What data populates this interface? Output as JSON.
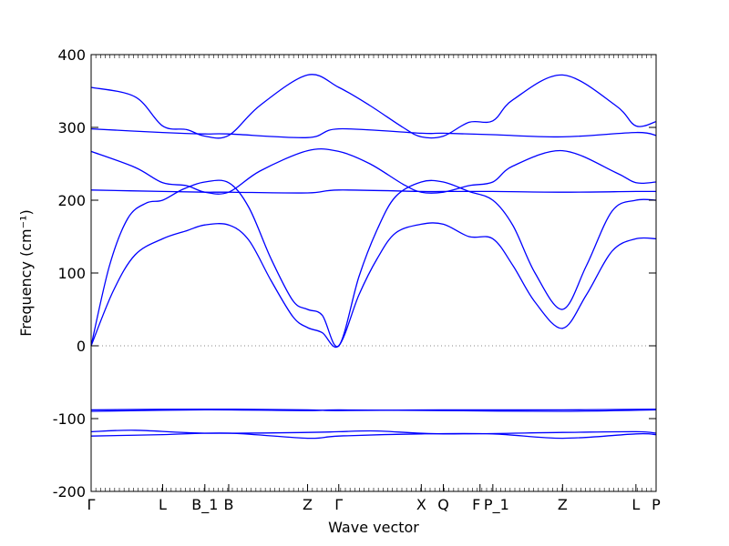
{
  "chart_data": {
    "type": "line",
    "title": "",
    "xlabel": "Wave vector",
    "ylabel": "Frequency (cm⁻¹)",
    "ylim": [
      -200,
      400
    ],
    "yticks": [
      -200,
      -100,
      0,
      100,
      200,
      300,
      400
    ],
    "grid": false,
    "legend": "none",
    "line_color": "#0000ff",
    "zero_line_color": "#888888",
    "xlim": [
      0,
      15.4
    ],
    "kpoints": [
      {
        "label": "Γ",
        "x": 0
      },
      {
        "label": "L",
        "x": 1.95
      },
      {
        "label": "B_1",
        "x": 3.1
      },
      {
        "label": "B",
        "x": 3.75
      },
      {
        "label": "Z",
        "x": 5.9
      },
      {
        "label": "Γ",
        "x": 6.75
      },
      {
        "label": "X",
        "x": 9.0
      },
      {
        "label": "Q",
        "x": 9.6
      },
      {
        "label": "F",
        "x": 10.6
      },
      {
        "label": "P_1",
        "x": 10.95
      },
      {
        "label": "Z",
        "x": 12.85
      },
      {
        "label": "L",
        "x": 14.85
      },
      {
        "label": "P",
        "x": 15.4
      }
    ],
    "series": [
      {
        "x": [
          0,
          1.2,
          1.95,
          2.6,
          3.1,
          3.75,
          4.6,
          5.9,
          6.75,
          7.6,
          8.5,
          9.0,
          9.6,
          10.3,
          10.95,
          11.5,
          12.85,
          14.3,
          14.85,
          15.4
        ],
        "values": [
          355,
          342,
          302,
          297,
          288,
          289,
          330,
          372,
          355,
          330,
          300,
          287,
          288,
          307,
          309,
          338,
          372,
          330,
          302,
          308
        ]
      },
      {
        "x": [
          0,
          1.95,
          3.1,
          3.75,
          5.9,
          6.75,
          9.0,
          9.6,
          10.95,
          12.85,
          14.85,
          15.4
        ],
        "values": [
          298,
          293,
          291,
          291,
          286,
          298,
          292,
          292,
          290,
          287,
          293,
          289
        ]
      },
      {
        "x": [
          0,
          1.2,
          1.95,
          2.6,
          3.1,
          3.75,
          4.6,
          5.9,
          6.75,
          7.6,
          8.5,
          9.0,
          9.6,
          10.3,
          10.95,
          11.5,
          12.85,
          14.3,
          14.85,
          15.4
        ],
        "values": [
          267,
          245,
          224,
          220,
          211,
          211,
          240,
          268,
          267,
          250,
          222,
          211,
          211,
          220,
          225,
          247,
          268,
          238,
          224,
          225
        ]
      },
      {
        "x": [
          0,
          1.95,
          3.1,
          3.75,
          5.9,
          6.75,
          9.0,
          9.6,
          10.95,
          12.85,
          14.85,
          15.4
        ],
        "values": [
          214,
          212,
          211,
          211,
          210,
          214,
          212,
          212,
          212,
          211,
          212,
          212
        ]
      },
      {
        "x": [
          0,
          0.5,
          1.0,
          1.5,
          1.95,
          2.5,
          3.1,
          3.75,
          4.3,
          4.9,
          5.5,
          5.9,
          6.3,
          6.75,
          7.3,
          7.8,
          8.3,
          9.0,
          9.6,
          10.3,
          10.95,
          11.5,
          12.1,
          12.85,
          13.5,
          14.2,
          14.85,
          15.4
        ],
        "values": [
          0,
          110,
          175,
          196,
          200,
          215,
          225,
          224,
          190,
          120,
          62,
          50,
          42,
          0,
          95,
          160,
          205,
          225,
          225,
          212,
          200,
          165,
          100,
          50,
          110,
          185,
          200,
          200
        ]
      },
      {
        "x": [
          0,
          0.6,
          1.2,
          1.95,
          2.6,
          3.1,
          3.75,
          4.3,
          4.9,
          5.5,
          5.9,
          6.3,
          6.75,
          7.3,
          7.8,
          8.3,
          9.0,
          9.6,
          10.3,
          10.95,
          11.5,
          12.1,
          12.85,
          13.5,
          14.2,
          14.85,
          15.4
        ],
        "values": [
          0,
          75,
          125,
          147,
          158,
          166,
          166,
          145,
          90,
          40,
          25,
          18,
          0,
          70,
          120,
          155,
          167,
          167,
          150,
          147,
          110,
          60,
          24,
          70,
          130,
          147,
          147
        ]
      },
      {
        "x": [
          0,
          3.1,
          5.9,
          6.75,
          9.6,
          12.85,
          15.4
        ],
        "values": [
          -88,
          -87,
          -88,
          -89,
          -88,
          -88,
          -87
        ]
      },
      {
        "x": [
          0,
          3.1,
          5.9,
          6.75,
          9.6,
          12.85,
          15.4
        ],
        "values": [
          -90,
          -88,
          -89,
          -88,
          -89,
          -90,
          -88
        ]
      },
      {
        "x": [
          0,
          1.2,
          3.1,
          5.9,
          6.75,
          7.8,
          9.6,
          12.85,
          14.85,
          15.4
        ],
        "values": [
          -118,
          -116,
          -120,
          -119,
          -118,
          -117,
          -121,
          -119,
          -118,
          -120
        ]
      },
      {
        "x": [
          0,
          1.95,
          3.75,
          5.9,
          6.75,
          9.0,
          10.95,
          12.85,
          14.85,
          15.4
        ],
        "values": [
          -124,
          -122,
          -120,
          -127,
          -124,
          -121,
          -121,
          -127,
          -121,
          -122
        ]
      }
    ]
  }
}
